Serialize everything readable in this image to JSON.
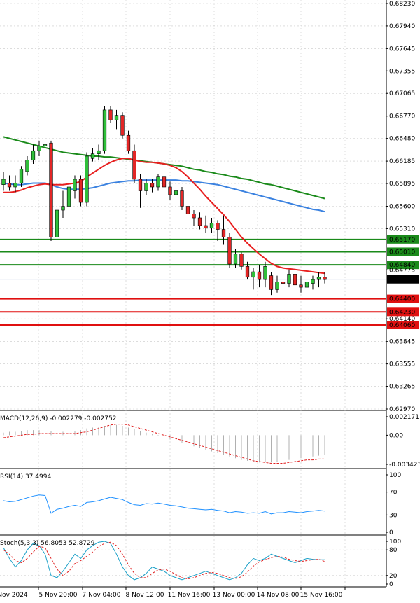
{
  "chart_data": {
    "type": "candlestick",
    "price_panel": {
      "y_ticks": [
        "0.68230",
        "0.67940",
        "0.67645",
        "0.67355",
        "0.67065",
        "0.66770",
        "0.66480",
        "0.66185",
        "0.65895",
        "0.65600",
        "0.65310",
        "0.64775",
        "0.64140",
        "0.63845",
        "0.63555",
        "0.63265",
        "0.62970"
      ],
      "ylim": [
        0.6297,
        0.6823
      ],
      "current_price": "0.64653",
      "support_levels": [
        "0.64400",
        "0.64230",
        "0.64060"
      ],
      "resistance_levels": [
        "0.65170",
        "0.65010",
        "0.64840"
      ],
      "candles": [
        {
          "o": 0.6588,
          "h": 0.6605,
          "l": 0.658,
          "c": 0.6595
        },
        {
          "o": 0.659,
          "h": 0.66,
          "l": 0.658,
          "c": 0.6585
        },
        {
          "o": 0.6585,
          "h": 0.66,
          "l": 0.6578,
          "c": 0.659
        },
        {
          "o": 0.659,
          "h": 0.6612,
          "l": 0.6585,
          "c": 0.6608
        },
        {
          "o": 0.6605,
          "h": 0.6625,
          "l": 0.66,
          "c": 0.662
        },
        {
          "o": 0.662,
          "h": 0.664,
          "l": 0.6615,
          "c": 0.6632
        },
        {
          "o": 0.6632,
          "h": 0.6645,
          "l": 0.6625,
          "c": 0.6638
        },
        {
          "o": 0.6638,
          "h": 0.6648,
          "l": 0.6628,
          "c": 0.664
        },
        {
          "o": 0.6642,
          "h": 0.6645,
          "l": 0.6515,
          "c": 0.652
        },
        {
          "o": 0.652,
          "h": 0.6572,
          "l": 0.6515,
          "c": 0.6555
        },
        {
          "o": 0.6555,
          "h": 0.658,
          "l": 0.6545,
          "c": 0.656
        },
        {
          "o": 0.656,
          "h": 0.659,
          "l": 0.6555,
          "c": 0.6585
        },
        {
          "o": 0.658,
          "h": 0.66,
          "l": 0.657,
          "c": 0.6595
        },
        {
          "o": 0.6595,
          "h": 0.66,
          "l": 0.656,
          "c": 0.6565
        },
        {
          "o": 0.6565,
          "h": 0.663,
          "l": 0.656,
          "c": 0.6625
        },
        {
          "o": 0.6622,
          "h": 0.6635,
          "l": 0.6618,
          "c": 0.6628
        },
        {
          "o": 0.6628,
          "h": 0.664,
          "l": 0.662,
          "c": 0.6632
        },
        {
          "o": 0.6632,
          "h": 0.669,
          "l": 0.6628,
          "c": 0.6685
        },
        {
          "o": 0.6685,
          "h": 0.669,
          "l": 0.6668,
          "c": 0.6672
        },
        {
          "o": 0.6672,
          "h": 0.6685,
          "l": 0.666,
          "c": 0.6678
        },
        {
          "o": 0.6678,
          "h": 0.6682,
          "l": 0.6648,
          "c": 0.6652
        },
        {
          "o": 0.6652,
          "h": 0.6658,
          "l": 0.6628,
          "c": 0.6632
        },
        {
          "o": 0.6632,
          "h": 0.664,
          "l": 0.659,
          "c": 0.6595
        },
        {
          "o": 0.6595,
          "h": 0.6602,
          "l": 0.6558,
          "c": 0.658
        },
        {
          "o": 0.658,
          "h": 0.6595,
          "l": 0.6575,
          "c": 0.659
        },
        {
          "o": 0.659,
          "h": 0.6595,
          "l": 0.6578,
          "c": 0.6585
        },
        {
          "o": 0.6585,
          "h": 0.6602,
          "l": 0.658,
          "c": 0.6598
        },
        {
          "o": 0.6598,
          "h": 0.66,
          "l": 0.658,
          "c": 0.6585
        },
        {
          "o": 0.6585,
          "h": 0.6592,
          "l": 0.6568,
          "c": 0.6575
        },
        {
          "o": 0.6575,
          "h": 0.6588,
          "l": 0.6565,
          "c": 0.658
        },
        {
          "o": 0.658,
          "h": 0.6585,
          "l": 0.6555,
          "c": 0.656
        },
        {
          "o": 0.656,
          "h": 0.6568,
          "l": 0.6545,
          "c": 0.655
        },
        {
          "o": 0.655,
          "h": 0.6555,
          "l": 0.6535,
          "c": 0.6545
        },
        {
          "o": 0.6545,
          "h": 0.6552,
          "l": 0.653,
          "c": 0.6535
        },
        {
          "o": 0.6535,
          "h": 0.6548,
          "l": 0.6525,
          "c": 0.6532
        },
        {
          "o": 0.6532,
          "h": 0.6545,
          "l": 0.6525,
          "c": 0.6538
        },
        {
          "o": 0.6538,
          "h": 0.6542,
          "l": 0.6515,
          "c": 0.653
        },
        {
          "o": 0.653,
          "h": 0.6548,
          "l": 0.651,
          "c": 0.652
        },
        {
          "o": 0.652,
          "h": 0.6525,
          "l": 0.648,
          "c": 0.6485
        },
        {
          "o": 0.6485,
          "h": 0.6505,
          "l": 0.648,
          "c": 0.6498
        },
        {
          "o": 0.6498,
          "h": 0.65,
          "l": 0.6478,
          "c": 0.6482
        },
        {
          "o": 0.6482,
          "h": 0.6488,
          "l": 0.6465,
          "c": 0.6468
        },
        {
          "o": 0.6468,
          "h": 0.648,
          "l": 0.6452,
          "c": 0.6475
        },
        {
          "o": 0.6475,
          "h": 0.6484,
          "l": 0.6455,
          "c": 0.6465
        },
        {
          "o": 0.6465,
          "h": 0.6488,
          "l": 0.6455,
          "c": 0.6482
        },
        {
          "o": 0.647,
          "h": 0.6475,
          "l": 0.6445,
          "c": 0.6452
        },
        {
          "o": 0.6452,
          "h": 0.647,
          "l": 0.6448,
          "c": 0.6462
        },
        {
          "o": 0.6462,
          "h": 0.6472,
          "l": 0.645,
          "c": 0.646
        },
        {
          "o": 0.646,
          "h": 0.6478,
          "l": 0.6455,
          "c": 0.6472
        },
        {
          "o": 0.6472,
          "h": 0.648,
          "l": 0.6455,
          "c": 0.6458
        },
        {
          "o": 0.6458,
          "h": 0.647,
          "l": 0.6448,
          "c": 0.6455
        },
        {
          "o": 0.6455,
          "h": 0.6468,
          "l": 0.645,
          "c": 0.6462
        },
        {
          "o": 0.646,
          "h": 0.647,
          "l": 0.6452,
          "c": 0.6465
        },
        {
          "o": 0.6465,
          "h": 0.6475,
          "l": 0.6455,
          "c": 0.6468
        },
        {
          "o": 0.6468,
          "h": 0.6475,
          "l": 0.646,
          "c": 0.6465
        }
      ],
      "ma_red": [
        0.6578,
        0.6578,
        0.6579,
        0.6581,
        0.6584,
        0.6586,
        0.6588,
        0.6589,
        0.6588,
        0.6588,
        0.6588,
        0.6589,
        0.659,
        0.6592,
        0.6598,
        0.6603,
        0.6608,
        0.6613,
        0.6617,
        0.662,
        0.6622,
        0.6622,
        0.662,
        0.6618,
        0.6617,
        0.6617,
        0.6616,
        0.6615,
        0.6613,
        0.661,
        0.6605,
        0.6598,
        0.659,
        0.6582,
        0.6573,
        0.6565,
        0.6557,
        0.6549,
        0.654,
        0.653,
        0.652,
        0.6512,
        0.6505,
        0.6498,
        0.6492,
        0.6486,
        0.6482,
        0.648,
        0.6479,
        0.6478,
        0.6477,
        0.6476,
        0.6475,
        0.6474,
        0.6473
      ],
      "ma_blue": [
        0.659,
        0.6589,
        0.6588,
        0.6588,
        0.6589,
        0.659,
        0.659,
        0.659,
        0.6588,
        0.6585,
        0.6583,
        0.6582,
        0.6582,
        0.6582,
        0.6583,
        0.6584,
        0.6586,
        0.6588,
        0.659,
        0.6591,
        0.6592,
        0.6593,
        0.6593,
        0.6594,
        0.6594,
        0.6594,
        0.6594,
        0.6594,
        0.6594,
        0.6594,
        0.6593,
        0.6593,
        0.6592,
        0.6591,
        0.659,
        0.6589,
        0.6588,
        0.6586,
        0.6584,
        0.6582,
        0.658,
        0.6578,
        0.6576,
        0.6574,
        0.6572,
        0.657,
        0.6568,
        0.6566,
        0.6564,
        0.6562,
        0.656,
        0.6558,
        0.6556,
        0.6555,
        0.6553
      ],
      "ma_green": [
        0.665,
        0.6648,
        0.6646,
        0.6644,
        0.6642,
        0.664,
        0.6638,
        0.6636,
        0.6634,
        0.6632,
        0.663,
        0.6629,
        0.6628,
        0.6627,
        0.6626,
        0.6625,
        0.6625,
        0.6624,
        0.6624,
        0.6623,
        0.6622,
        0.6621,
        0.662,
        0.6619,
        0.6618,
        0.6617,
        0.6616,
        0.6615,
        0.6614,
        0.6613,
        0.6612,
        0.661,
        0.6608,
        0.6607,
        0.6605,
        0.6604,
        0.6602,
        0.6601,
        0.6599,
        0.6598,
        0.6596,
        0.6595,
        0.6593,
        0.6591,
        0.6589,
        0.6588,
        0.6586,
        0.6584,
        0.6582,
        0.658,
        0.6578,
        0.6576,
        0.6574,
        0.6572,
        0.657
      ]
    },
    "macd_panel": {
      "label": "MACD(12,26,9) -0.002279 -0.002752",
      "y_ticks": [
        "0.002171",
        "0.00",
        "-0.003423"
      ],
      "ylim": [
        -0.003423,
        0.002171
      ],
      "histogram": [
        0.0003,
        0.0004,
        0.0004,
        0.0005,
        0.0006,
        0.0006,
        0.0006,
        0.0006,
        0.0005,
        0.0004,
        0.0004,
        0.0004,
        0.0005,
        0.0006,
        0.0008,
        0.0009,
        0.001,
        0.0011,
        0.0012,
        0.0012,
        0.0011,
        0.0009,
        0.0007,
        0.0005,
        0.0003,
        0.0001,
        -0.0001,
        -0.0003,
        -0.0005,
        -0.0007,
        -0.0009,
        -0.0011,
        -0.0013,
        -0.0015,
        -0.0017,
        -0.0019,
        -0.0021,
        -0.0023,
        -0.0025,
        -0.0027,
        -0.0029,
        -0.003,
        -0.0031,
        -0.0032,
        -0.0032,
        -0.0032,
        -0.0031,
        -0.003,
        -0.0029,
        -0.0028,
        -0.0027,
        -0.0026,
        -0.0025,
        -0.0024,
        -0.0023
      ],
      "signal": [
        -0.0003,
        -0.0002,
        -0.0001,
        0.0,
        0.0001,
        0.0001,
        0.0002,
        0.0002,
        0.0002,
        0.0002,
        0.0002,
        0.0002,
        0.0002,
        0.0003,
        0.0004,
        0.0006,
        0.0008,
        0.001,
        0.0012,
        0.0013,
        0.0013,
        0.0012,
        0.001,
        0.0008,
        0.0006,
        0.0004,
        0.0002,
        0.0,
        -0.0002,
        -0.0004,
        -0.0006,
        -0.0008,
        -0.001,
        -0.0012,
        -0.0014,
        -0.0016,
        -0.0018,
        -0.002,
        -0.0022,
        -0.0024,
        -0.0026,
        -0.0028,
        -0.003,
        -0.0031,
        -0.0032,
        -0.0033,
        -0.0033,
        -0.0033,
        -0.0032,
        -0.0031,
        -0.003,
        -0.0029,
        -0.0029,
        -0.0028,
        -0.0028
      ]
    },
    "rsi_panel": {
      "label": "RSI(14) 37.4994",
      "y_ticks": [
        "100",
        "70",
        "30",
        "0"
      ],
      "ylim": [
        0,
        100
      ],
      "values": [
        55,
        53,
        54,
        57,
        60,
        63,
        65,
        64,
        33,
        40,
        42,
        45,
        47,
        45,
        52,
        53,
        55,
        58,
        61,
        59,
        57,
        52,
        48,
        47,
        50,
        49,
        51,
        49,
        47,
        46,
        44,
        42,
        41,
        40,
        39,
        40,
        38,
        37,
        34,
        36,
        35,
        33,
        34,
        33,
        36,
        32,
        34,
        34,
        36,
        35,
        34,
        36,
        37,
        38,
        37
      ]
    },
    "stoch_panel": {
      "label": "Stoch(5,3,3) 56.8053 52.8729",
      "y_ticks": [
        "100",
        "80",
        "20",
        "0"
      ],
      "ylim": [
        0,
        100
      ],
      "k": [
        85,
        60,
        40,
        55,
        80,
        95,
        90,
        70,
        20,
        15,
        30,
        50,
        70,
        60,
        80,
        90,
        98,
        100,
        95,
        70,
        40,
        20,
        10,
        15,
        25,
        40,
        35,
        30,
        20,
        15,
        10,
        15,
        20,
        25,
        30,
        25,
        20,
        15,
        10,
        15,
        25,
        45,
        60,
        55,
        60,
        70,
        65,
        60,
        55,
        50,
        55,
        60,
        58,
        57,
        57
      ],
      "d": [
        80,
        70,
        55,
        50,
        60,
        75,
        88,
        85,
        60,
        35,
        20,
        30,
        48,
        55,
        65,
        75,
        88,
        95,
        98,
        90,
        70,
        45,
        25,
        15,
        15,
        25,
        33,
        35,
        30,
        22,
        15,
        12,
        15,
        20,
        25,
        27,
        25,
        20,
        15,
        13,
        17,
        28,
        42,
        52,
        57,
        62,
        65,
        63,
        58,
        55,
        53,
        55,
        57,
        58,
        53
      ]
    },
    "x_labels": [
      "Nov 2024",
      "5 Nov 20:00",
      "7 Nov 04:00",
      "8 Nov 12:00",
      "11 Nov 16:00",
      "13 Nov 00:00",
      "14 Nov 08:00",
      "15 Nov 16:00"
    ]
  }
}
